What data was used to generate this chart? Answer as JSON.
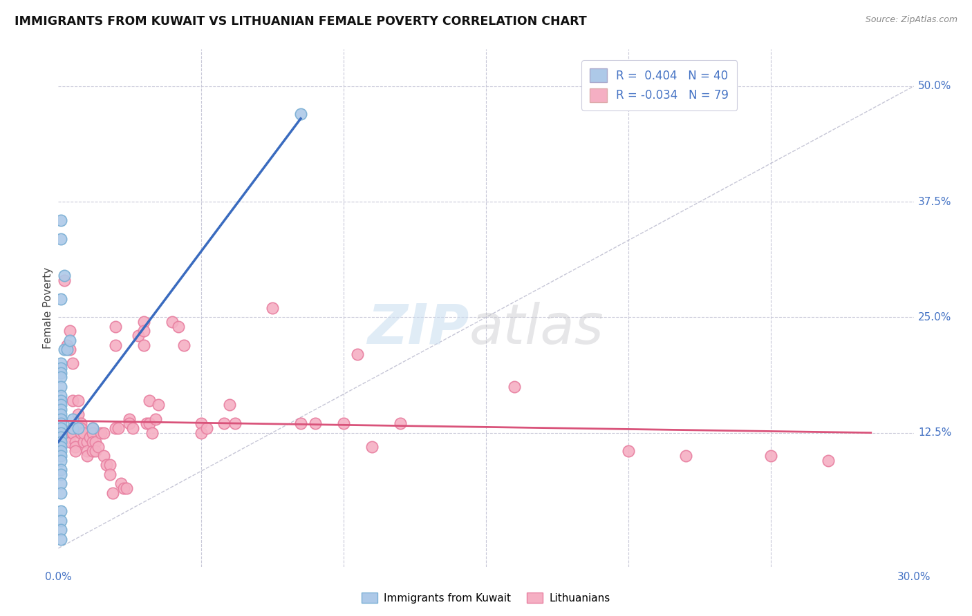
{
  "title": "IMMIGRANTS FROM KUWAIT VS LITHUANIAN FEMALE POVERTY CORRELATION CHART",
  "source": "Source: ZipAtlas.com",
  "ylabel": "Female Poverty",
  "right_yticks": [
    "50.0%",
    "37.5%",
    "25.0%",
    "12.5%"
  ],
  "right_ytick_vals": [
    0.5,
    0.375,
    0.25,
    0.125
  ],
  "xlim": [
    0.0,
    0.3
  ],
  "ylim": [
    -0.02,
    0.54
  ],
  "kuwait_color": "#adc9e8",
  "lithuanian_color": "#f5afc3",
  "kuwait_edge": "#7aafd4",
  "lithuanian_edge": "#e87fa0",
  "kuwait_line_color": "#3a6bbf",
  "lithuanian_line_color": "#d9537a",
  "diag_line_color": "#b8b8cc",
  "kuwait_line": [
    [
      0.0,
      0.115
    ],
    [
      0.085,
      0.465
    ]
  ],
  "lithuanian_line": [
    [
      0.0,
      0.138
    ],
    [
      0.285,
      0.125
    ]
  ],
  "diag_line": [
    [
      0.0,
      0.0
    ],
    [
      0.3,
      0.5
    ]
  ],
  "kuwait_points": [
    [
      0.001,
      0.355
    ],
    [
      0.001,
      0.335
    ],
    [
      0.002,
      0.295
    ],
    [
      0.001,
      0.27
    ],
    [
      0.002,
      0.215
    ],
    [
      0.001,
      0.2
    ],
    [
      0.001,
      0.195
    ],
    [
      0.001,
      0.19
    ],
    [
      0.001,
      0.185
    ],
    [
      0.001,
      0.175
    ],
    [
      0.001,
      0.165
    ],
    [
      0.001,
      0.16
    ],
    [
      0.001,
      0.155
    ],
    [
      0.001,
      0.15
    ],
    [
      0.001,
      0.145
    ],
    [
      0.001,
      0.14
    ],
    [
      0.001,
      0.135
    ],
    [
      0.001,
      0.13
    ],
    [
      0.001,
      0.125
    ],
    [
      0.001,
      0.12
    ],
    [
      0.001,
      0.115
    ],
    [
      0.001,
      0.11
    ],
    [
      0.001,
      0.105
    ],
    [
      0.001,
      0.1
    ],
    [
      0.001,
      0.095
    ],
    [
      0.001,
      0.085
    ],
    [
      0.001,
      0.08
    ],
    [
      0.001,
      0.07
    ],
    [
      0.001,
      0.06
    ],
    [
      0.001,
      0.04
    ],
    [
      0.001,
      0.03
    ],
    [
      0.001,
      0.02
    ],
    [
      0.001,
      0.01
    ],
    [
      0.003,
      0.215
    ],
    [
      0.004,
      0.225
    ],
    [
      0.005,
      0.14
    ],
    [
      0.005,
      0.13
    ],
    [
      0.007,
      0.13
    ],
    [
      0.012,
      0.13
    ],
    [
      0.085,
      0.47
    ]
  ],
  "lithuanian_points": [
    [
      0.002,
      0.29
    ],
    [
      0.003,
      0.22
    ],
    [
      0.004,
      0.235
    ],
    [
      0.004,
      0.215
    ],
    [
      0.004,
      0.125
    ],
    [
      0.004,
      0.115
    ],
    [
      0.005,
      0.2
    ],
    [
      0.005,
      0.16
    ],
    [
      0.005,
      0.13
    ],
    [
      0.005,
      0.125
    ],
    [
      0.006,
      0.115
    ],
    [
      0.006,
      0.11
    ],
    [
      0.006,
      0.105
    ],
    [
      0.007,
      0.16
    ],
    [
      0.007,
      0.145
    ],
    [
      0.008,
      0.135
    ],
    [
      0.008,
      0.13
    ],
    [
      0.008,
      0.125
    ],
    [
      0.009,
      0.115
    ],
    [
      0.009,
      0.125
    ],
    [
      0.01,
      0.115
    ],
    [
      0.01,
      0.105
    ],
    [
      0.01,
      0.1
    ],
    [
      0.011,
      0.12
    ],
    [
      0.012,
      0.13
    ],
    [
      0.012,
      0.125
    ],
    [
      0.012,
      0.115
    ],
    [
      0.012,
      0.105
    ],
    [
      0.013,
      0.115
    ],
    [
      0.013,
      0.105
    ],
    [
      0.014,
      0.11
    ],
    [
      0.015,
      0.125
    ],
    [
      0.016,
      0.125
    ],
    [
      0.016,
      0.1
    ],
    [
      0.017,
      0.09
    ],
    [
      0.018,
      0.09
    ],
    [
      0.018,
      0.08
    ],
    [
      0.019,
      0.06
    ],
    [
      0.02,
      0.24
    ],
    [
      0.02,
      0.22
    ],
    [
      0.02,
      0.13
    ],
    [
      0.021,
      0.13
    ],
    [
      0.022,
      0.07
    ],
    [
      0.023,
      0.065
    ],
    [
      0.024,
      0.065
    ],
    [
      0.025,
      0.14
    ],
    [
      0.025,
      0.135
    ],
    [
      0.026,
      0.13
    ],
    [
      0.028,
      0.23
    ],
    [
      0.03,
      0.245
    ],
    [
      0.03,
      0.235
    ],
    [
      0.03,
      0.22
    ],
    [
      0.031,
      0.135
    ],
    [
      0.032,
      0.16
    ],
    [
      0.032,
      0.135
    ],
    [
      0.033,
      0.125
    ],
    [
      0.034,
      0.14
    ],
    [
      0.035,
      0.155
    ],
    [
      0.04,
      0.245
    ],
    [
      0.042,
      0.24
    ],
    [
      0.044,
      0.22
    ],
    [
      0.05,
      0.135
    ],
    [
      0.05,
      0.125
    ],
    [
      0.052,
      0.13
    ],
    [
      0.058,
      0.135
    ],
    [
      0.06,
      0.155
    ],
    [
      0.062,
      0.135
    ],
    [
      0.075,
      0.26
    ],
    [
      0.085,
      0.135
    ],
    [
      0.09,
      0.135
    ],
    [
      0.1,
      0.135
    ],
    [
      0.105,
      0.21
    ],
    [
      0.11,
      0.11
    ],
    [
      0.12,
      0.135
    ],
    [
      0.16,
      0.175
    ],
    [
      0.2,
      0.105
    ],
    [
      0.22,
      0.1
    ],
    [
      0.25,
      0.1
    ],
    [
      0.27,
      0.095
    ]
  ]
}
